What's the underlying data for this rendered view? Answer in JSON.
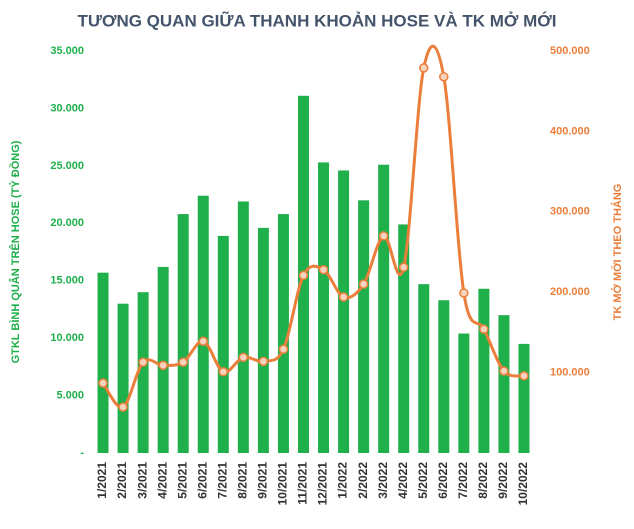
{
  "chart_data": {
    "type": "bar",
    "title": "TƯƠNG QUAN GIỮA THANH KHOẢN HOSE VÀ TK MỞ MỚI",
    "ylabel": "GTKL BÌNH QUÂN TRÊN HOSE (TỶ ĐỒNG)",
    "y2label": "TK MỞ MỚI THEO THÁNG",
    "categories": [
      "1/2021",
      "2/2021",
      "3/2021",
      "4/2021",
      "5/2021",
      "6/2021",
      "7/2021",
      "8/2021",
      "9/2021",
      "10/2021",
      "11/2021",
      "12/2021",
      "1/2022",
      "2/2022",
      "3/2022",
      "4/2022",
      "5/2022",
      "6/2022",
      "7/2022",
      "8/2022",
      "9/2022",
      "10/2022"
    ],
    "series": [
      {
        "type": "bar",
        "color": "#1faf4b",
        "values": [
          15700,
          13000,
          14000,
          16200,
          20800,
          22400,
          18900,
          21900,
          19600,
          20800,
          31100,
          25300,
          24600,
          22000,
          25100,
          19900,
          14700,
          13300,
          10400,
          14300,
          12000,
          9500
        ]
      },
      {
        "type": "line",
        "axis": "y2",
        "color": "#ea7e3a",
        "values": [
          87000,
          57000,
          113000,
          109000,
          113000,
          139000,
          101000,
          119000,
          114000,
          129000,
          221000,
          228000,
          194000,
          210000,
          270000,
          231000,
          479000,
          468000,
          199000,
          154000,
          102000,
          96000
        ]
      }
    ],
    "ylim": [
      0,
      35000
    ],
    "yticks": [
      {
        "value": 0,
        "label": "-"
      },
      {
        "value": 5000,
        "label": "5.000"
      },
      {
        "value": 10000,
        "label": "10.000"
      },
      {
        "value": 15000,
        "label": "15.000"
      },
      {
        "value": 20000,
        "label": "20.000"
      },
      {
        "value": 25000,
        "label": "25.000"
      },
      {
        "value": 30000,
        "label": "30.000"
      },
      {
        "value": 35000,
        "label": "35.000"
      }
    ],
    "y2lim": [
      0,
      500000
    ],
    "y2ticks": [
      {
        "value": 100000,
        "label": "100.000"
      },
      {
        "value": 200000,
        "label": "200.000"
      },
      {
        "value": 300000,
        "label": "300.000"
      },
      {
        "value": 400000,
        "label": "400.000"
      },
      {
        "value": 500000,
        "label": "500.000"
      }
    ]
  }
}
